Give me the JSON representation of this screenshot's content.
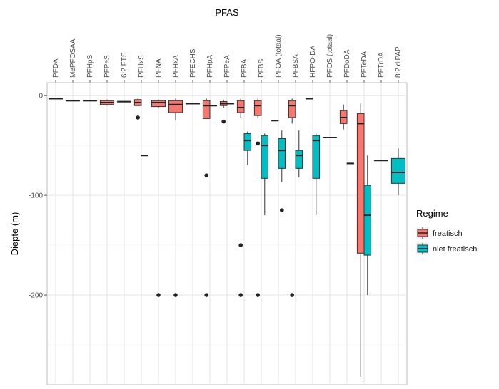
{
  "chart_data": {
    "type": "boxplot",
    "title": "PFAS",
    "ylabel": "Diepte (m)",
    "ylim": [
      -290,
      13
    ],
    "y_ticks": [
      0,
      -100,
      -200
    ],
    "categories": [
      "PFDA",
      "MePFOSAA",
      "PFHpS",
      "PFPeS",
      "6:2 FTS",
      "PFHxS",
      "PFNA",
      "PFHxA",
      "PFECHS",
      "PFHpA",
      "PFPeA",
      "PFBA",
      "PFBS",
      "PFOA (totaal)",
      "PFBSA",
      "HFPO-DA",
      "PFOS (totaal)",
      "PFDoDA",
      "PFTeDA",
      "PFTrDA",
      "8:2 diPAP"
    ],
    "legend": {
      "title": "Regime",
      "position": "right"
    },
    "series": [
      {
        "name": "freatisch",
        "color": "#F8766D",
        "boxes": [
          {
            "category": "PFDA",
            "min": -3,
            "q1": -3,
            "median": -3,
            "q3": -3,
            "max": -3,
            "outliers": []
          },
          {
            "category": "MePFOSAA",
            "min": -5,
            "q1": -5,
            "median": -5,
            "q3": -5,
            "max": -5,
            "outliers": []
          },
          {
            "category": "PFHpS",
            "min": -5,
            "q1": -5,
            "median": -5,
            "q3": -5,
            "max": -5,
            "outliers": []
          },
          {
            "category": "PFPeS",
            "min": -10,
            "q1": -9,
            "median": -7,
            "q3": -5,
            "max": -4,
            "outliers": []
          },
          {
            "category": "6:2 FTS",
            "min": -6,
            "q1": -6,
            "median": -6,
            "q3": -6,
            "max": -6,
            "outliers": []
          },
          {
            "category": "PFHxS",
            "min": -10,
            "q1": -10,
            "median": -7,
            "q3": -4,
            "max": -3,
            "outliers": [
              -22
            ]
          },
          {
            "category": "PFNA",
            "min": -12,
            "q1": -11,
            "median": -7,
            "q3": -5,
            "max": -4,
            "outliers": [
              -200
            ]
          },
          {
            "category": "PFHxA",
            "min": -25,
            "q1": -17,
            "median": -9,
            "q3": -5,
            "max": -3,
            "outliers": [
              -200
            ]
          },
          {
            "category": "PFECHS",
            "min": -8,
            "q1": -8,
            "median": -8,
            "q3": -8,
            "max": -8,
            "outliers": []
          },
          {
            "category": "PFHpA",
            "min": -23,
            "q1": -23,
            "median": -10,
            "q3": -5,
            "max": -3,
            "outliers": [
              -80,
              -200
            ]
          },
          {
            "category": "PFPeA",
            "min": -12,
            "q1": -10,
            "median": -8,
            "q3": -6,
            "max": -4,
            "outliers": [
              -26
            ]
          },
          {
            "category": "PFBA",
            "min": -22,
            "q1": -17,
            "median": -12,
            "q3": -5,
            "max": -3,
            "outliers": [
              -150,
              -200
            ]
          },
          {
            "category": "PFBS",
            "min": -22,
            "q1": -20,
            "median": -10,
            "q3": -5,
            "max": -3,
            "outliers": [
              -48,
              -200
            ]
          },
          {
            "category": "PFOA (totaal)",
            "min": -25,
            "q1": -25,
            "median": -25,
            "q3": -25,
            "max": -25,
            "outliers": []
          },
          {
            "category": "PFBSA",
            "min": -28,
            "q1": -22,
            "median": -10,
            "q3": -5,
            "max": -3,
            "outliers": [
              -200
            ]
          },
          {
            "category": "HFPO-DA",
            "min": -3,
            "q1": -3,
            "median": -3,
            "q3": -3,
            "max": -3,
            "outliers": []
          },
          {
            "category": "PFDoDA",
            "min": -34,
            "q1": -28,
            "median": -22,
            "q3": -15,
            "max": -9,
            "outliers": []
          },
          {
            "category": "PFTeDA",
            "min": -282,
            "q1": -158,
            "median": -28,
            "q3": -18,
            "max": -8,
            "outliers": []
          }
        ]
      },
      {
        "name": "niet freatisch",
        "color": "#00BFC4",
        "boxes": [
          {
            "category": "PFHxS",
            "min": -60,
            "q1": -60,
            "median": -60,
            "q3": -60,
            "max": -60,
            "outliers": []
          },
          {
            "category": "PFHpA",
            "min": -10,
            "q1": -10,
            "median": -10,
            "q3": -10,
            "max": -10,
            "outliers": []
          },
          {
            "category": "PFPeA",
            "min": -8,
            "q1": -8,
            "median": -8,
            "q3": -8,
            "max": -8,
            "outliers": []
          },
          {
            "category": "PFBA",
            "min": -70,
            "q1": -55,
            "median": -45,
            "q3": -38,
            "max": -36,
            "outliers": []
          },
          {
            "category": "PFBS",
            "min": -120,
            "q1": -83,
            "median": -50,
            "q3": -40,
            "max": -38,
            "outliers": []
          },
          {
            "category": "PFOA (totaal)",
            "min": -87,
            "q1": -73,
            "median": -55,
            "q3": -43,
            "max": -35,
            "outliers": [
              -115
            ]
          },
          {
            "category": "PFBSA",
            "min": -82,
            "q1": -73,
            "median": -60,
            "q3": -55,
            "max": -35,
            "outliers": []
          },
          {
            "category": "HFPO-DA",
            "min": -120,
            "q1": -83,
            "median": -45,
            "q3": -40,
            "max": -38,
            "outliers": []
          },
          {
            "category": "PFOS (totaal)",
            "min": -42,
            "q1": -42,
            "median": -42,
            "q3": -42,
            "max": -42,
            "outliers": []
          },
          {
            "category": "PFDoDA",
            "min": -68,
            "q1": -68,
            "median": -68,
            "q3": -68,
            "max": -68,
            "outliers": []
          },
          {
            "category": "PFTeDA",
            "min": -200,
            "q1": -160,
            "median": -120,
            "q3": -90,
            "max": -60,
            "outliers": []
          },
          {
            "category": "PFTrDA",
            "min": -65,
            "q1": -65,
            "median": -65,
            "q3": -65,
            "max": -65,
            "outliers": []
          },
          {
            "category": "8:2 diPAP",
            "min": -100,
            "q1": -88,
            "median": -77,
            "q3": -63,
            "max": -53,
            "outliers": []
          }
        ]
      }
    ]
  }
}
